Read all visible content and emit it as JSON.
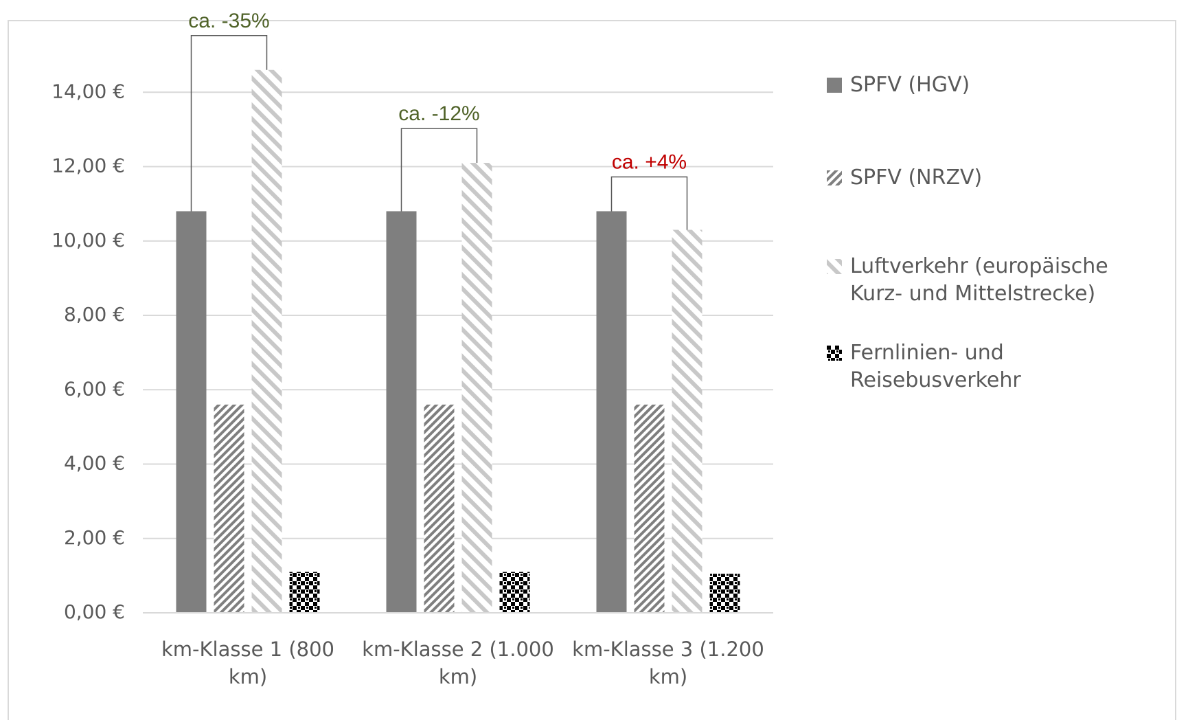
{
  "chart_data": {
    "type": "bar",
    "categories": [
      "km-Klasse 1 (800 km)",
      "km-Klasse 2 (1.000 km)",
      "km-Klasse 3 (1.200 km)"
    ],
    "series": [
      {
        "name": "SPFV (HGV)",
        "color": "#7f7f7f",
        "pattern": "solid",
        "values": [
          10.8,
          10.8,
          10.8
        ]
      },
      {
        "name": "SPFV (NRZV)",
        "color": "#7f7f7f",
        "pattern": "hatch-back",
        "values": [
          5.6,
          5.6,
          5.6
        ]
      },
      {
        "name": "Luftverkehr (europäische Kurz- und Mittelstrecke)",
        "color": "#c8c8c8",
        "pattern": "hatch-forward",
        "values": [
          14.6,
          12.1,
          10.3
        ]
      },
      {
        "name": "Fernlinien- und Reisebusverkehr",
        "color": "#000000",
        "pattern": "checker",
        "values": [
          1.1,
          1.1,
          1.05
        ]
      }
    ],
    "annotations": [
      {
        "text": "ca. -35%",
        "color": "#4f6228"
      },
      {
        "text": "ca. -12%",
        "color": "#4f6228"
      },
      {
        "text": "ca. +4%",
        "color": "#c00000"
      }
    ],
    "ylim": [
      0,
      16
    ],
    "yticks": [
      {
        "value": 0,
        "label": "0,00 €"
      },
      {
        "value": 2,
        "label": "2,00 €"
      },
      {
        "value": 4,
        "label": "4,00 €"
      },
      {
        "value": 6,
        "label": "6,00 €"
      },
      {
        "value": 8,
        "label": "8,00 €"
      },
      {
        "value": 10,
        "label": "10,00 €"
      },
      {
        "value": 12,
        "label": "12,00 €"
      },
      {
        "value": 14,
        "label": "14,00 €"
      }
    ],
    "grid": true,
    "legend": "right"
  }
}
